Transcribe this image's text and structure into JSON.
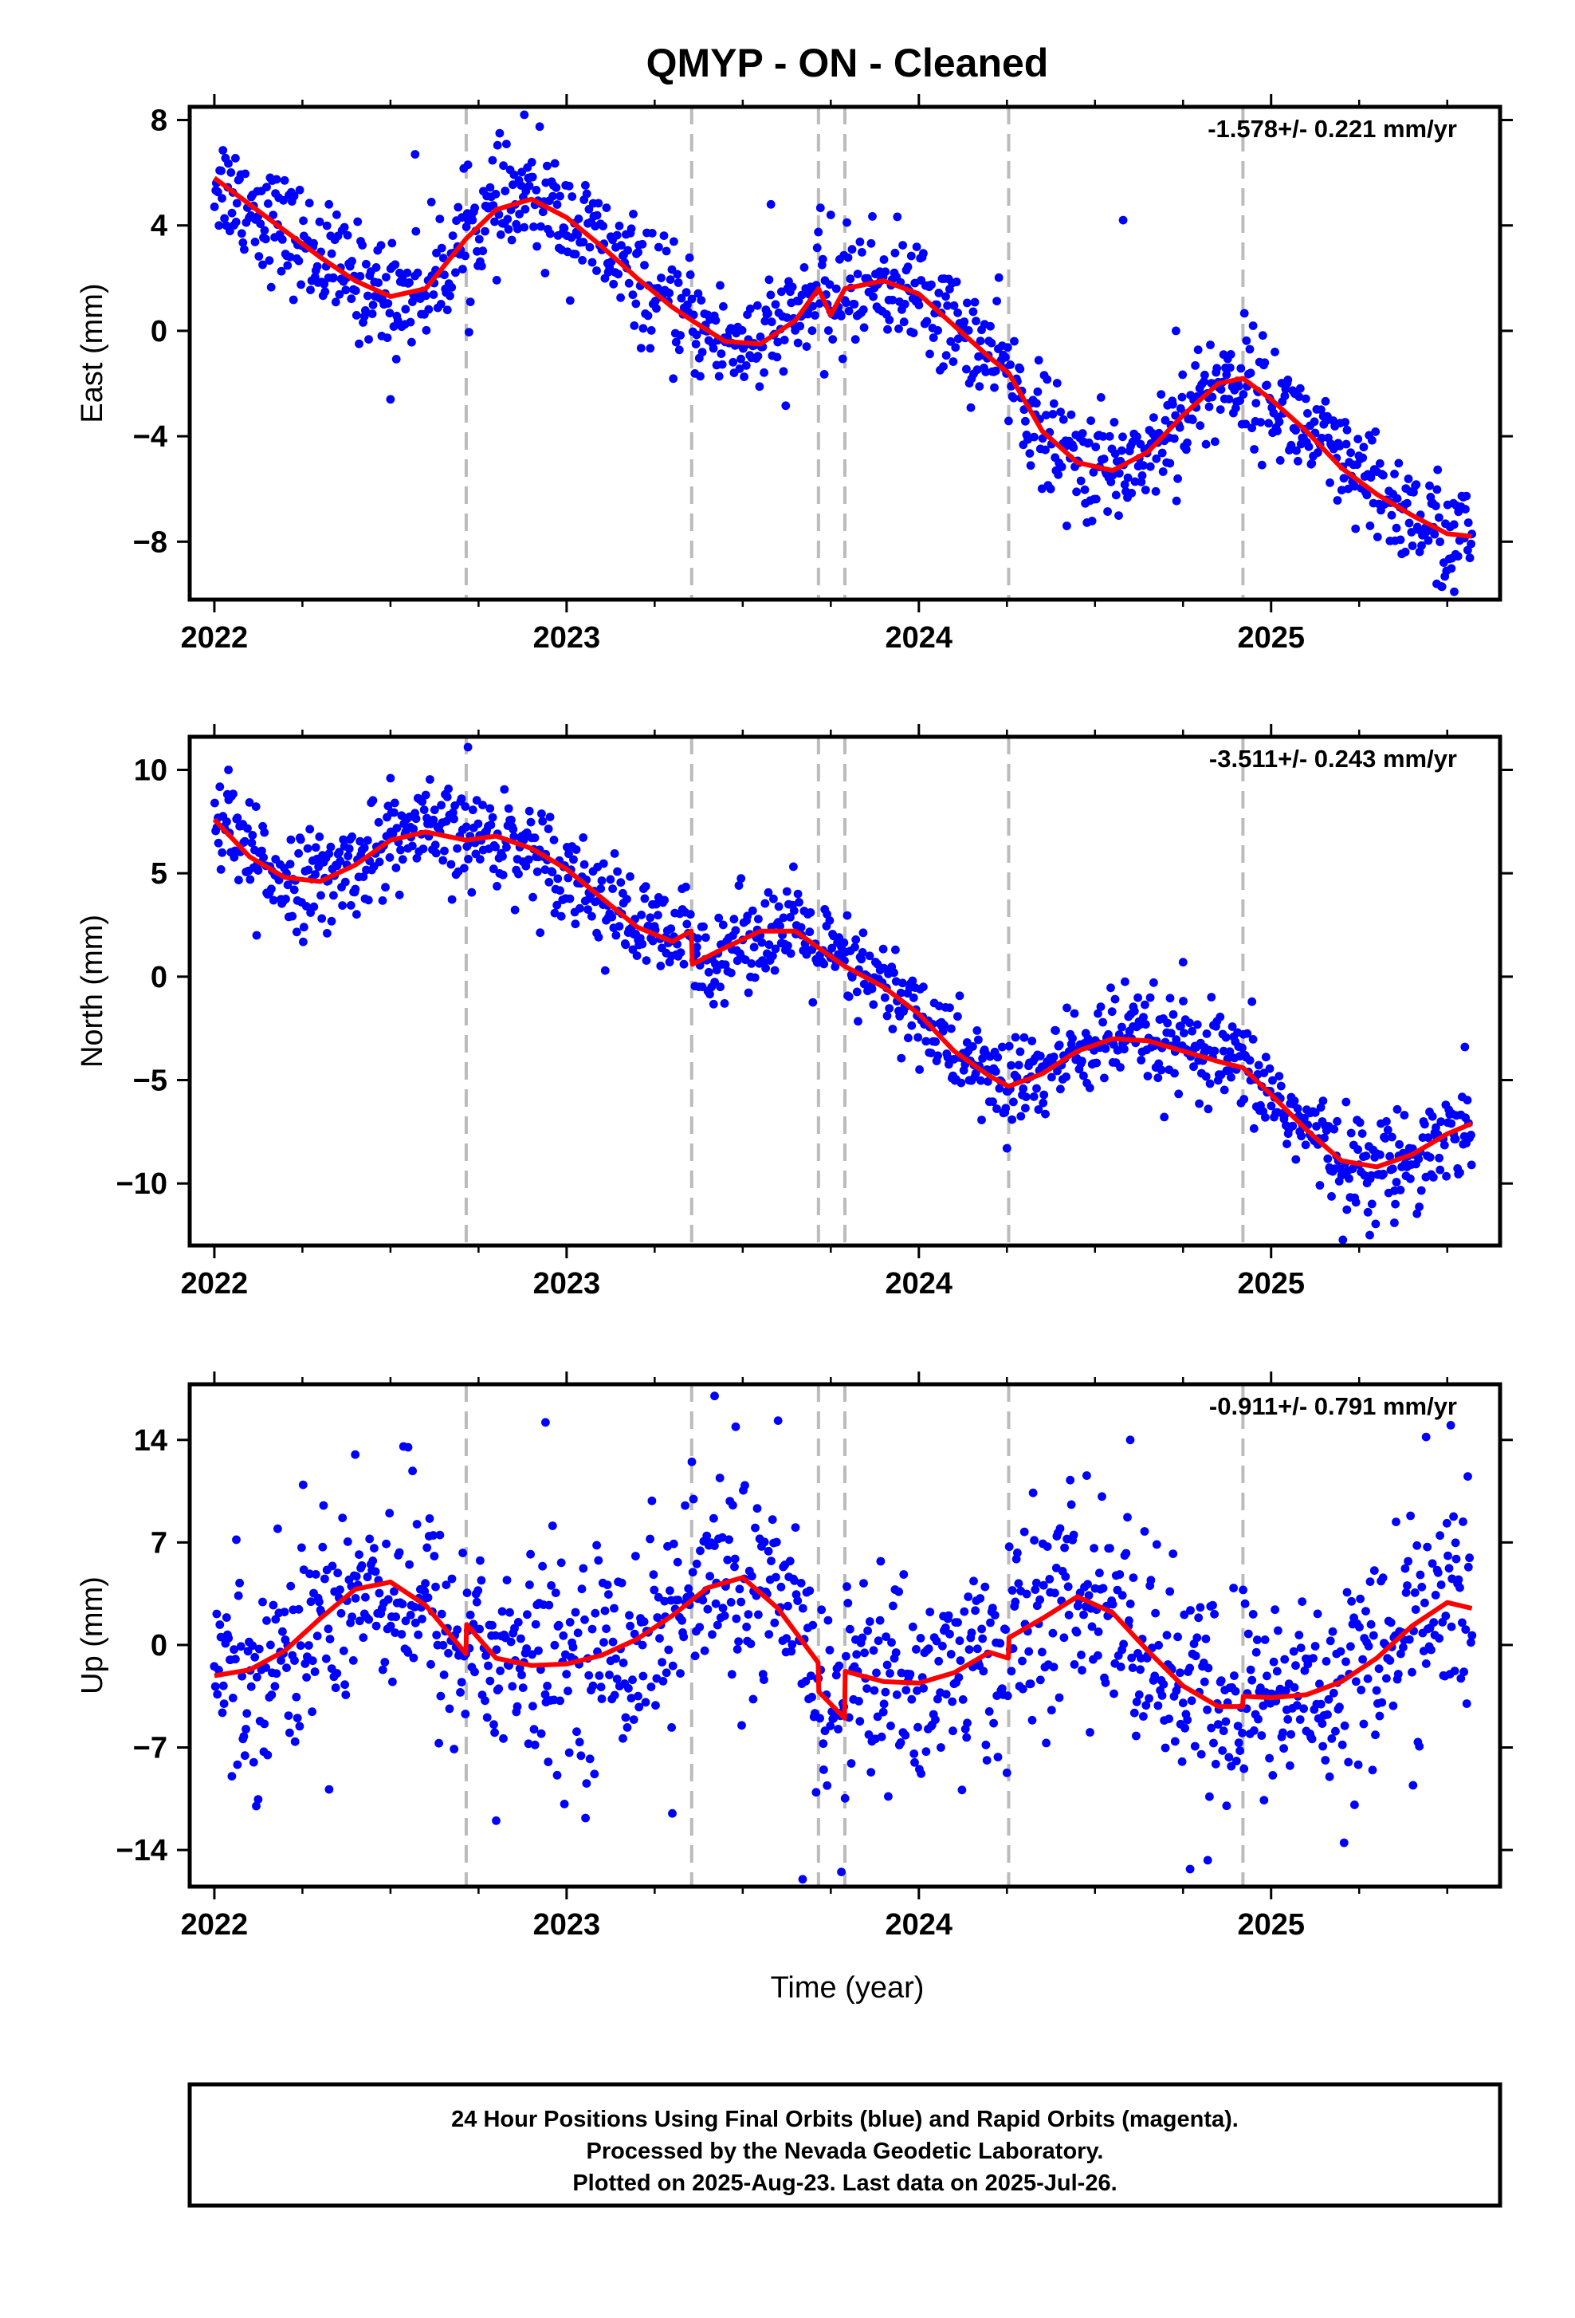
{
  "title": "QMYP  - ON - Cleaned",
  "xlabel": "Time (year)",
  "footer": {
    "line1": "24 Hour Positions Using Final Orbits (blue) and Rapid Orbits (magenta).",
    "line2": "Processed by the Nevada Geodetic Laboratory.",
    "line3": "Plotted on 2025-Aug-23. Last data on 2025-Jul-26."
  },
  "colors": {
    "points": "#0000ff",
    "model": "#ff0000",
    "event_lines": "#bbbbbb"
  },
  "x_axis": {
    "range": [
      2021.93,
      2025.65
    ],
    "ticks": [
      2022,
      2023,
      2024,
      2025
    ],
    "tick_labels": [
      "2022",
      "2023",
      "2024",
      "2025"
    ]
  },
  "event_lines": [
    2022.715,
    2023.355,
    2023.715,
    2023.79,
    2024.255,
    2024.92
  ],
  "chart_data": [
    {
      "type": "scatter",
      "ylabel": "East (mm)",
      "ylim": [
        -10.2,
        8.5
      ],
      "yticks": [
        8,
        4,
        0,
        -4,
        -8
      ],
      "yticklabels": [
        "8",
        "4",
        "0",
        "−4",
        "−8"
      ],
      "velocity": "-1.578+/- 0.221 mm/yr",
      "model": {
        "x": [
          2022.0,
          2022.1,
          2022.2,
          2022.3,
          2022.4,
          2022.5,
          2022.6,
          2022.715,
          2022.8,
          2022.9,
          2023.0,
          2023.1,
          2023.2,
          2023.3,
          2023.355,
          2023.45,
          2023.55,
          2023.65,
          2023.715,
          2023.75,
          2023.79,
          2023.9,
          2024.0,
          2024.1,
          2024.2,
          2024.255,
          2024.35,
          2024.45,
          2024.55,
          2024.65,
          2024.75,
          2024.85,
          2024.92,
          2025.0,
          2025.1,
          2025.2,
          2025.3,
          2025.4,
          2025.5,
          2025.57
        ],
        "y": [
          5.8,
          4.8,
          3.8,
          2.8,
          1.9,
          1.3,
          1.6,
          3.5,
          4.6,
          5.0,
          4.3,
          3.2,
          2.0,
          0.9,
          0.4,
          -0.4,
          -0.5,
          0.4,
          1.6,
          0.6,
          1.6,
          1.9,
          1.4,
          0.2,
          -1.0,
          -1.6,
          -3.8,
          -5.0,
          -5.3,
          -4.6,
          -3.2,
          -2.0,
          -1.8,
          -2.6,
          -3.8,
          -5.2,
          -6.2,
          -7.0,
          -7.7,
          -7.8
        ]
      },
      "noise": 1.05,
      "outliers": [
        [
          2022.57,
          6.7
        ],
        [
          2022.72,
          6.3
        ],
        [
          2022.88,
          8.2
        ],
        [
          2023.58,
          4.8
        ],
        [
          2023.75,
          4.4
        ],
        [
          2024.58,
          4.2
        ],
        [
          2024.73,
          0.0
        ],
        [
          2024.42,
          -7.4
        ],
        [
          2025.52,
          -9.9
        ],
        [
          2025.47,
          -9.6
        ],
        [
          2022.5,
          -2.6
        ]
      ]
    },
    {
      "type": "scatter",
      "ylabel": "North (mm)",
      "ylim": [
        -13.0,
        11.6
      ],
      "yticks": [
        10,
        5,
        0,
        -5,
        -10
      ],
      "yticklabels": [
        "10",
        "5",
        "0",
        "−5",
        "−10"
      ],
      "velocity": "-3.511+/- 0.243 mm/yr",
      "model": {
        "x": [
          2022.0,
          2022.1,
          2022.2,
          2022.3,
          2022.4,
          2022.5,
          2022.6,
          2022.715,
          2022.8,
          2022.9,
          2023.0,
          2023.1,
          2023.2,
          2023.3,
          2023.354,
          2023.357,
          2023.45,
          2023.55,
          2023.65,
          2023.715,
          2023.79,
          2023.9,
          2024.0,
          2024.1,
          2024.2,
          2024.255,
          2024.35,
          2024.45,
          2024.55,
          2024.65,
          2024.75,
          2024.85,
          2024.92,
          2025.0,
          2025.1,
          2025.2,
          2025.3,
          2025.4,
          2025.5,
          2025.57
        ],
        "y": [
          7.6,
          5.8,
          4.8,
          4.6,
          5.4,
          6.6,
          7.0,
          6.6,
          6.8,
          6.2,
          5.2,
          3.8,
          2.4,
          1.7,
          2.2,
          0.6,
          1.4,
          2.2,
          2.2,
          1.4,
          0.5,
          -0.5,
          -1.8,
          -3.6,
          -4.8,
          -5.3,
          -4.7,
          -3.6,
          -3.0,
          -3.1,
          -3.6,
          -4.1,
          -4.4,
          -5.7,
          -7.4,
          -8.9,
          -9.2,
          -8.6,
          -7.6,
          -7.1
        ]
      },
      "noise": 1.15,
      "outliers": [
        [
          2022.04,
          10.0
        ],
        [
          2022.72,
          11.1
        ],
        [
          2022.5,
          9.6
        ],
        [
          2024.75,
          0.7
        ],
        [
          2025.28,
          -12.5
        ],
        [
          2025.35,
          -11.9
        ],
        [
          2025.55,
          -3.4
        ],
        [
          2024.25,
          -8.3
        ],
        [
          2022.12,
          2.0
        ],
        [
          2022.32,
          2.1
        ]
      ]
    },
    {
      "type": "scatter",
      "ylabel": "Up (mm)",
      "ylim": [
        -16.5,
        17.8
      ],
      "yticks": [
        14,
        7,
        0,
        -7,
        -14
      ],
      "yticklabels": [
        "14",
        "7",
        "0",
        "−7",
        "−14"
      ],
      "velocity": "-0.911+/- 0.791 mm/yr",
      "model": {
        "x": [
          2022.0,
          2022.1,
          2022.2,
          2022.3,
          2022.4,
          2022.5,
          2022.6,
          2022.714,
          2022.716,
          2022.8,
          2022.9,
          2023.0,
          2023.1,
          2023.2,
          2023.3,
          2023.4,
          2023.5,
          2023.6,
          2023.714,
          2023.716,
          2023.789,
          2023.791,
          2023.9,
          2024.0,
          2024.1,
          2024.2,
          2024.254,
          2024.256,
          2024.35,
          2024.45,
          2024.55,
          2024.65,
          2024.75,
          2024.85,
          2024.919,
          2024.921,
          2025.0,
          2025.1,
          2025.2,
          2025.3,
          2025.4,
          2025.5,
          2025.57
        ],
        "y": [
          -2.1,
          -1.7,
          -0.4,
          1.8,
          3.8,
          4.3,
          2.7,
          -0.6,
          1.4,
          -0.9,
          -1.4,
          -1.3,
          -0.7,
          0.4,
          2.0,
          3.9,
          4.6,
          2.5,
          -1.2,
          -3.2,
          -5.0,
          -1.8,
          -2.5,
          -2.6,
          -1.9,
          -0.5,
          -0.9,
          0.5,
          1.8,
          3.3,
          2.2,
          -0.4,
          -2.8,
          -4.2,
          -4.2,
          -3.5,
          -3.6,
          -3.4,
          -2.5,
          -0.9,
          1.3,
          2.9,
          2.5
        ]
      },
      "noise": 3.6,
      "outliers": [
        [
          2022.4,
          13.0
        ],
        [
          2022.55,
          13.5
        ],
        [
          2022.94,
          15.2
        ],
        [
          2023.42,
          17.0
        ],
        [
          2023.48,
          14.9
        ],
        [
          2023.67,
          -16.0
        ],
        [
          2023.78,
          -15.5
        ],
        [
          2024.6,
          14.0
        ],
        [
          2024.77,
          -15.3
        ],
        [
          2024.82,
          -14.7
        ],
        [
          2025.51,
          15.0
        ],
        [
          2025.44,
          14.2
        ],
        [
          2023.3,
          -11.5
        ],
        [
          2022.8,
          -12.0
        ]
      ]
    }
  ]
}
